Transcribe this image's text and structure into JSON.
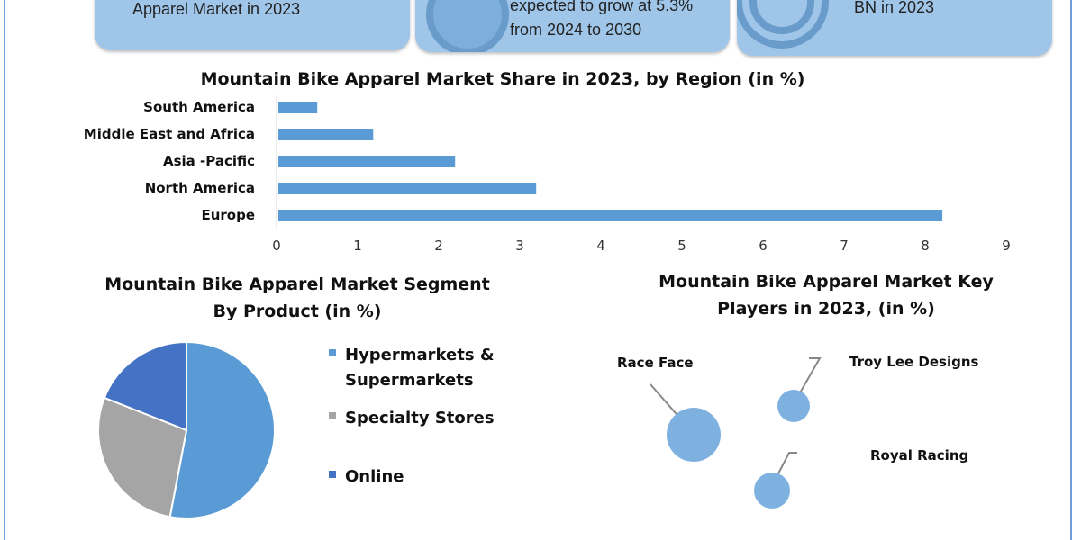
{
  "cards": [
    {
      "lines": [
        "Apparel Market in 2023"
      ]
    },
    {
      "lines": [
        "expected to grow at 5.3%",
        "from 2024 to 2030"
      ]
    },
    {
      "lines": [
        "BN in 2023"
      ]
    }
  ],
  "colors": {
    "card": "#9fc5e8",
    "bar": "#5b9bd5",
    "pie": [
      "#5b9bd5",
      "#a5a5a5",
      "#4472c4"
    ],
    "bubble": "#7eb1e0"
  },
  "chart_data": [
    {
      "type": "bar",
      "orientation": "horizontal",
      "title": "Mountain Bike Apparel Market Share in 2023, by Region (in %)",
      "categories": [
        "South America",
        "Middle East and Africa",
        "Asia -Pacific",
        "North America",
        "Europe"
      ],
      "values": [
        0.48,
        1.17,
        2.18,
        3.18,
        8.19
      ],
      "xlim": [
        0,
        9
      ],
      "xticks": [
        "0",
        "1",
        "2",
        "3",
        "4",
        "5",
        "6",
        "7",
        "8",
        "9"
      ],
      "grid": false
    },
    {
      "type": "pie",
      "title": [
        "Mountain Bike Apparel Market Segment",
        "By Product (in %)"
      ],
      "labels": [
        [
          "Hypermarkets &",
          "Supermarkets"
        ],
        [
          "Specialty Stores"
        ],
        [
          "Online"
        ]
      ],
      "values": [
        53,
        28,
        19
      ],
      "legend": "right"
    },
    {
      "type": "scatter",
      "subtype": "bubble",
      "title": [
        "Mountain Bike Apparel Market Key",
        "Players in 2023, (in %)"
      ],
      "labels": [
        "Race Face",
        "Troy Lee Designs",
        "Royal Racing"
      ],
      "sizes": [
        30,
        18,
        20
      ]
    }
  ]
}
